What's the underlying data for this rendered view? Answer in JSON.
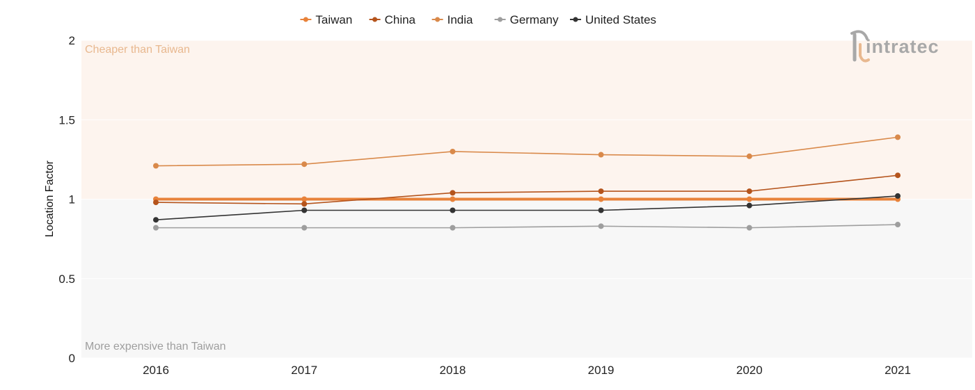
{
  "chart_data": {
    "type": "line",
    "categories": [
      "2016",
      "2017",
      "2018",
      "2019",
      "2020",
      "2021"
    ],
    "ylabel": "Location Factor",
    "xlabel": "",
    "ylim": [
      0,
      2
    ],
    "yticks": [
      0,
      0.5,
      1,
      1.5,
      2
    ],
    "ytick_labels": [
      "0",
      "0.5",
      "1",
      "1.5",
      "2"
    ],
    "legend_position": "top-center",
    "grid": true,
    "regions": {
      "upper_label": "Cheaper than Taiwan",
      "lower_label": "More expensive than Taiwan",
      "upper_color": "#fdf4ee",
      "lower_color": "#f7f7f7",
      "upper_label_color": "#e8b88f",
      "lower_label_color": "#9e9e9e",
      "threshold": 1
    },
    "series": [
      {
        "name": "Taiwan",
        "color": "#e8823a",
        "values": [
          1.0,
          1.0,
          1.0,
          1.0,
          1.0,
          1.0
        ]
      },
      {
        "name": "China",
        "color": "#b5541c",
        "values": [
          0.98,
          0.97,
          1.04,
          1.05,
          1.05,
          1.15
        ]
      },
      {
        "name": "India",
        "color": "#d9894a",
        "values": [
          1.21,
          1.22,
          1.3,
          1.28,
          1.27,
          1.39
        ]
      },
      {
        "name": "Germany",
        "color": "#9e9e9e",
        "values": [
          0.82,
          0.82,
          0.82,
          0.83,
          0.82,
          0.84
        ]
      },
      {
        "name": "United States",
        "color": "#333333",
        "values": [
          0.87,
          0.93,
          0.93,
          0.93,
          0.96,
          1.02
        ]
      }
    ]
  },
  "logo": {
    "text": "intratec",
    "icon": "intratec-logo-icon"
  }
}
